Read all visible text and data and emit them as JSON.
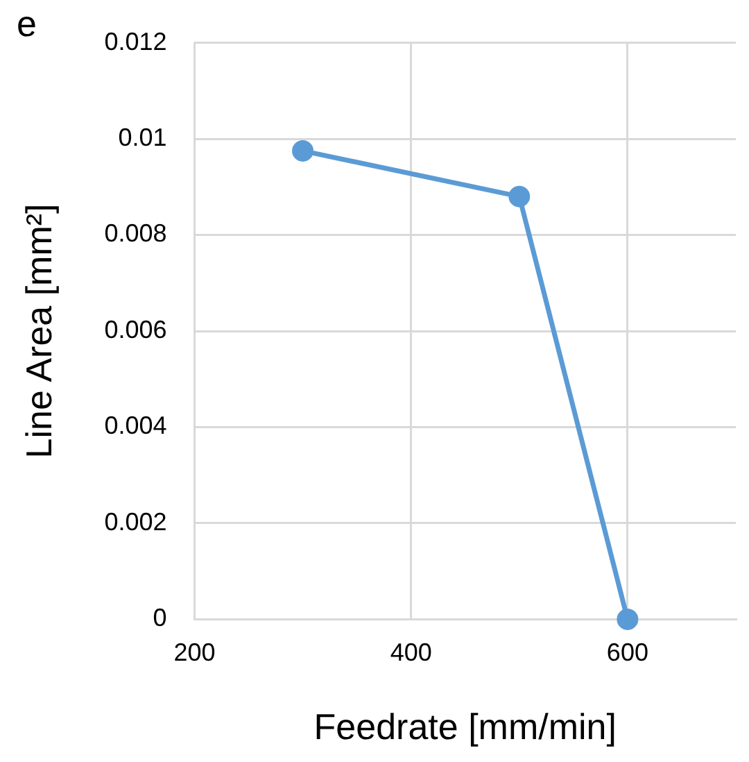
{
  "chart_data": {
    "type": "line",
    "xlabel": "Feedrate [mm/min]",
    "ylabel": "Line Area [mm²]",
    "annotations": [
      "e"
    ],
    "x": [
      300,
      500,
      600
    ],
    "series": [
      {
        "color": "#5b9bd5",
        "values": [
          0.00975,
          0.0088,
          0
        ]
      }
    ],
    "xlim": [
      200,
      700
    ],
    "xticks": [
      200,
      400,
      600
    ],
    "ylim": [
      0,
      0.012
    ],
    "yticks": [
      0,
      0.002,
      0.004,
      0.006,
      0.008,
      0.01,
      0.012
    ],
    "grid": true,
    "legend": false,
    "marker": "circle",
    "line_style": "solid"
  }
}
